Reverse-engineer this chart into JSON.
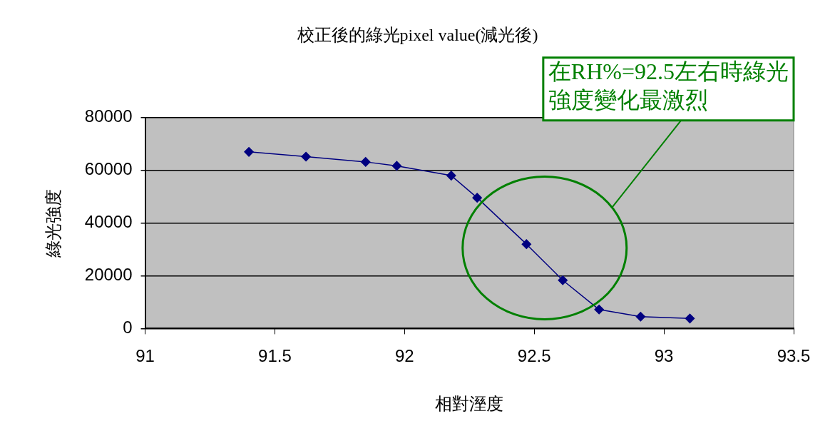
{
  "chart_data": {
    "type": "line",
    "title": "校正後的綠光pixel value(減光後)",
    "xlabel": "相對溼度",
    "ylabel": "綠光強度",
    "x": [
      91.4,
      91.62,
      91.85,
      91.97,
      92.18,
      92.28,
      92.47,
      92.61,
      92.75,
      92.91,
      93.1
    ],
    "series": [
      {
        "color": "#000080",
        "values": [
          67000,
          65200,
          63200,
          61700,
          58000,
          49600,
          32000,
          18300,
          7200,
          4500,
          3800
        ]
      }
    ],
    "xlim": [
      91,
      93.5
    ],
    "xticks": [
      91,
      91.5,
      92,
      92.5,
      93,
      93.5
    ],
    "ylim": [
      0,
      80000
    ],
    "yticks": [
      0,
      20000,
      40000,
      60000,
      80000
    ],
    "grid": "y",
    "legend": false,
    "marker": "diamond",
    "line_style": "solid",
    "annotations": [
      "在RH%=92.5左右時綠光強度變化最激烈"
    ]
  }
}
